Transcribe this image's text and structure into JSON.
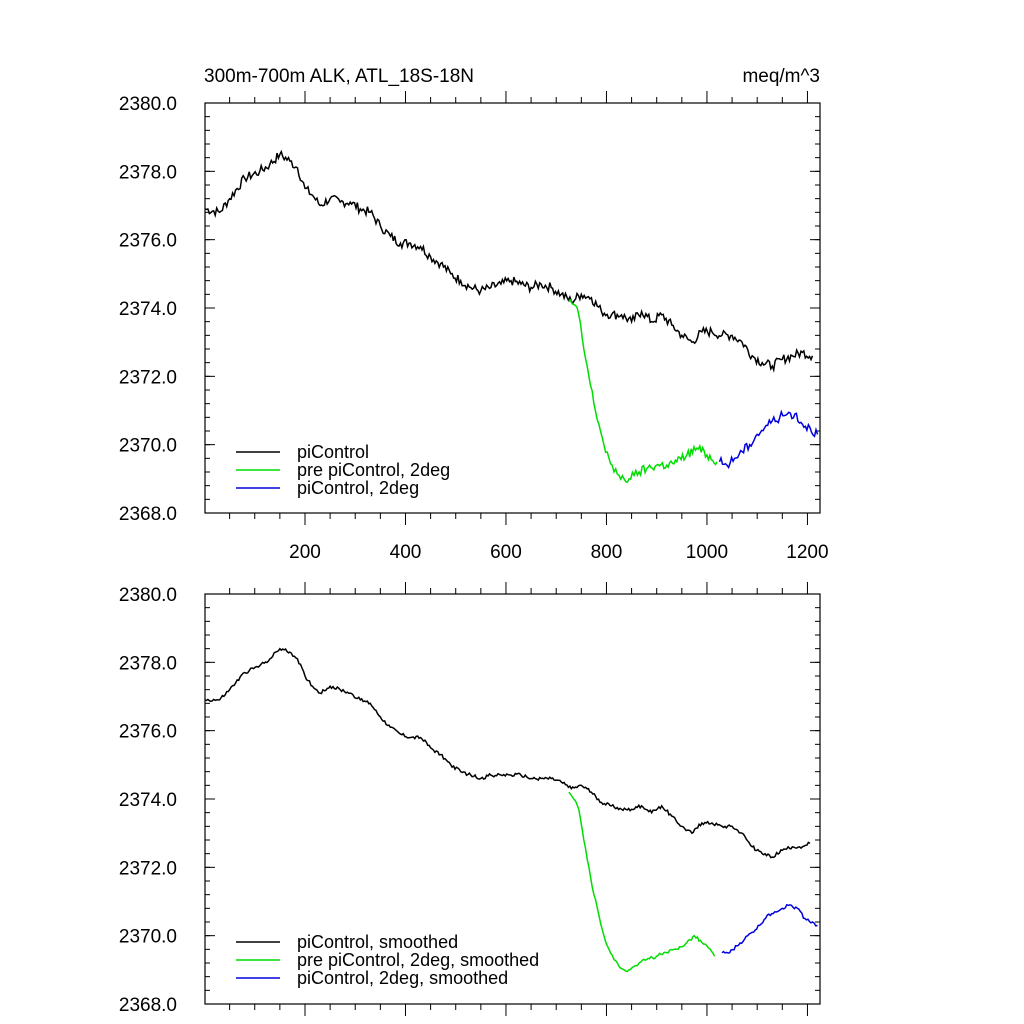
{
  "chart_data": [
    {
      "type": "line",
      "title_left": "300m-700m ALK, ATL_18S-18N",
      "title_right": "meq/m^3",
      "xlabel": "",
      "ylabel": "",
      "xlim": [
        1,
        1225
      ],
      "ylim": [
        2368.0,
        2380.0
      ],
      "x_ticks": [
        200,
        400,
        600,
        800,
        1000,
        1200
      ],
      "x_tick_labels": [
        "200",
        "400",
        "600",
        "800",
        "1000",
        "1200"
      ],
      "y_ticks": [
        2368,
        2370,
        2372,
        2374,
        2376,
        2378,
        2380
      ],
      "y_tick_labels": [
        "2368.0",
        "2370.0",
        "2372.0",
        "2374.0",
        "2376.0",
        "2378.0",
        "2380.0"
      ],
      "legend_position": "bottom-left",
      "series": [
        {
          "name": "piControl",
          "color": "#000000",
          "x": [
            1,
            30,
            50,
            80,
            110,
            130,
            150,
            170,
            185,
            200,
            215,
            230,
            250,
            270,
            290,
            310,
            330,
            350,
            370,
            390,
            410,
            430,
            450,
            470,
            490,
            510,
            530,
            550,
            570,
            590,
            610,
            630,
            650,
            670,
            690,
            710,
            730,
            750,
            770,
            790,
            810,
            830,
            850,
            870,
            890,
            910,
            930,
            950,
            970,
            990,
            1010,
            1030,
            1050,
            1070,
            1090,
            1110,
            1130,
            1150,
            1170,
            1190,
            1210
          ],
          "y": [
            2376.9,
            2376.8,
            2377.2,
            2377.8,
            2378.0,
            2378.2,
            2378.5,
            2378.3,
            2378.1,
            2377.5,
            2377.3,
            2377.0,
            2377.2,
            2377.1,
            2377.1,
            2376.9,
            2376.8,
            2376.4,
            2376.1,
            2375.9,
            2375.9,
            2375.8,
            2375.5,
            2375.3,
            2375.0,
            2374.8,
            2374.6,
            2374.5,
            2374.6,
            2374.7,
            2374.8,
            2374.7,
            2374.6,
            2374.7,
            2374.6,
            2374.4,
            2374.2,
            2374.4,
            2374.3,
            2373.9,
            2373.8,
            2373.8,
            2373.6,
            2373.9,
            2373.6,
            2373.8,
            2373.5,
            2373.2,
            2373.0,
            2373.3,
            2373.3,
            2373.2,
            2373.2,
            2373.0,
            2372.6,
            2372.4,
            2372.3,
            2372.5,
            2372.6,
            2372.7,
            2372.6
          ]
        },
        {
          "name": "pre piControl, 2deg",
          "color": "#00dd00",
          "x": [
            725,
            735,
            745,
            755,
            765,
            775,
            785,
            795,
            805,
            815,
            825,
            835,
            845,
            855,
            865,
            880,
            900,
            920,
            940,
            960,
            980,
            1000,
            1020
          ],
          "y": [
            2374.2,
            2374.1,
            2373.8,
            2372.8,
            2372.0,
            2371.2,
            2370.6,
            2370.0,
            2369.6,
            2369.2,
            2369.1,
            2369.0,
            2369.0,
            2369.1,
            2369.2,
            2369.3,
            2369.4,
            2369.4,
            2369.5,
            2369.7,
            2369.9,
            2369.7,
            2369.5
          ]
        },
        {
          "name": "piControl, 2deg",
          "color": "#0000dd",
          "x": [
            1025,
            1040,
            1055,
            1070,
            1085,
            1100,
            1115,
            1130,
            1145,
            1160,
            1175,
            1190,
            1205,
            1220
          ],
          "y": [
            2369.5,
            2369.4,
            2369.6,
            2369.8,
            2370.0,
            2370.3,
            2370.5,
            2370.7,
            2370.8,
            2370.9,
            2370.9,
            2370.6,
            2370.5,
            2370.3
          ]
        }
      ]
    },
    {
      "type": "line",
      "xlabel": "",
      "ylabel": "",
      "xlim": [
        1,
        1225
      ],
      "ylim": [
        2368.0,
        2380.0
      ],
      "y_ticks": [
        2368,
        2370,
        2372,
        2374,
        2376,
        2378,
        2380
      ],
      "y_tick_labels": [
        "2368.0",
        "2370.0",
        "2372.0",
        "2374.0",
        "2376.0",
        "2378.0",
        "2380.0"
      ],
      "legend_position": "bottom-left",
      "series": [
        {
          "name": "piControl, smoothed",
          "color": "#000000",
          "x": [
            1,
            30,
            50,
            80,
            110,
            130,
            150,
            170,
            185,
            200,
            215,
            230,
            250,
            270,
            290,
            310,
            330,
            350,
            370,
            390,
            410,
            430,
            450,
            470,
            490,
            510,
            530,
            550,
            570,
            590,
            610,
            630,
            650,
            670,
            690,
            710,
            730,
            750,
            770,
            790,
            810,
            830,
            850,
            870,
            890,
            910,
            930,
            950,
            970,
            990,
            1010,
            1030,
            1050,
            1070,
            1090,
            1110,
            1130,
            1150,
            1170,
            1190,
            1205
          ],
          "y": [
            2376.9,
            2376.9,
            2377.2,
            2377.7,
            2377.9,
            2378.1,
            2378.4,
            2378.3,
            2378.1,
            2377.6,
            2377.3,
            2377.1,
            2377.3,
            2377.2,
            2377.1,
            2376.9,
            2376.8,
            2376.4,
            2376.1,
            2375.9,
            2375.8,
            2375.8,
            2375.5,
            2375.3,
            2375.0,
            2374.8,
            2374.7,
            2374.6,
            2374.7,
            2374.7,
            2374.7,
            2374.7,
            2374.6,
            2374.6,
            2374.6,
            2374.5,
            2374.3,
            2374.4,
            2374.2,
            2373.9,
            2373.8,
            2373.7,
            2373.7,
            2373.8,
            2373.6,
            2373.8,
            2373.5,
            2373.2,
            2373.0,
            2373.3,
            2373.3,
            2373.2,
            2373.2,
            2373.0,
            2372.6,
            2372.4,
            2372.3,
            2372.5,
            2372.6,
            2372.6,
            2372.7
          ]
        },
        {
          "name": "pre piControl, 2deg, smoothed",
          "color": "#00dd00",
          "x": [
            725,
            735,
            745,
            755,
            765,
            775,
            785,
            795,
            805,
            815,
            825,
            835,
            845,
            855,
            865,
            880,
            900,
            920,
            940,
            960,
            975,
            990,
            1000,
            1015
          ],
          "y": [
            2374.2,
            2374.0,
            2373.7,
            2372.8,
            2372.0,
            2371.2,
            2370.6,
            2370.0,
            2369.6,
            2369.3,
            2369.1,
            2369.0,
            2369.0,
            2369.1,
            2369.2,
            2369.3,
            2369.4,
            2369.5,
            2369.6,
            2369.8,
            2370.0,
            2369.8,
            2369.7,
            2369.4
          ]
        },
        {
          "name": "piControl, 2deg, smoothed",
          "color": "#0000dd",
          "x": [
            1030,
            1045,
            1060,
            1075,
            1090,
            1105,
            1120,
            1135,
            1150,
            1165,
            1180,
            1195,
            1210,
            1220
          ],
          "y": [
            2369.5,
            2369.5,
            2369.7,
            2369.9,
            2370.1,
            2370.3,
            2370.6,
            2370.7,
            2370.8,
            2370.9,
            2370.8,
            2370.5,
            2370.4,
            2370.3
          ]
        }
      ]
    }
  ]
}
